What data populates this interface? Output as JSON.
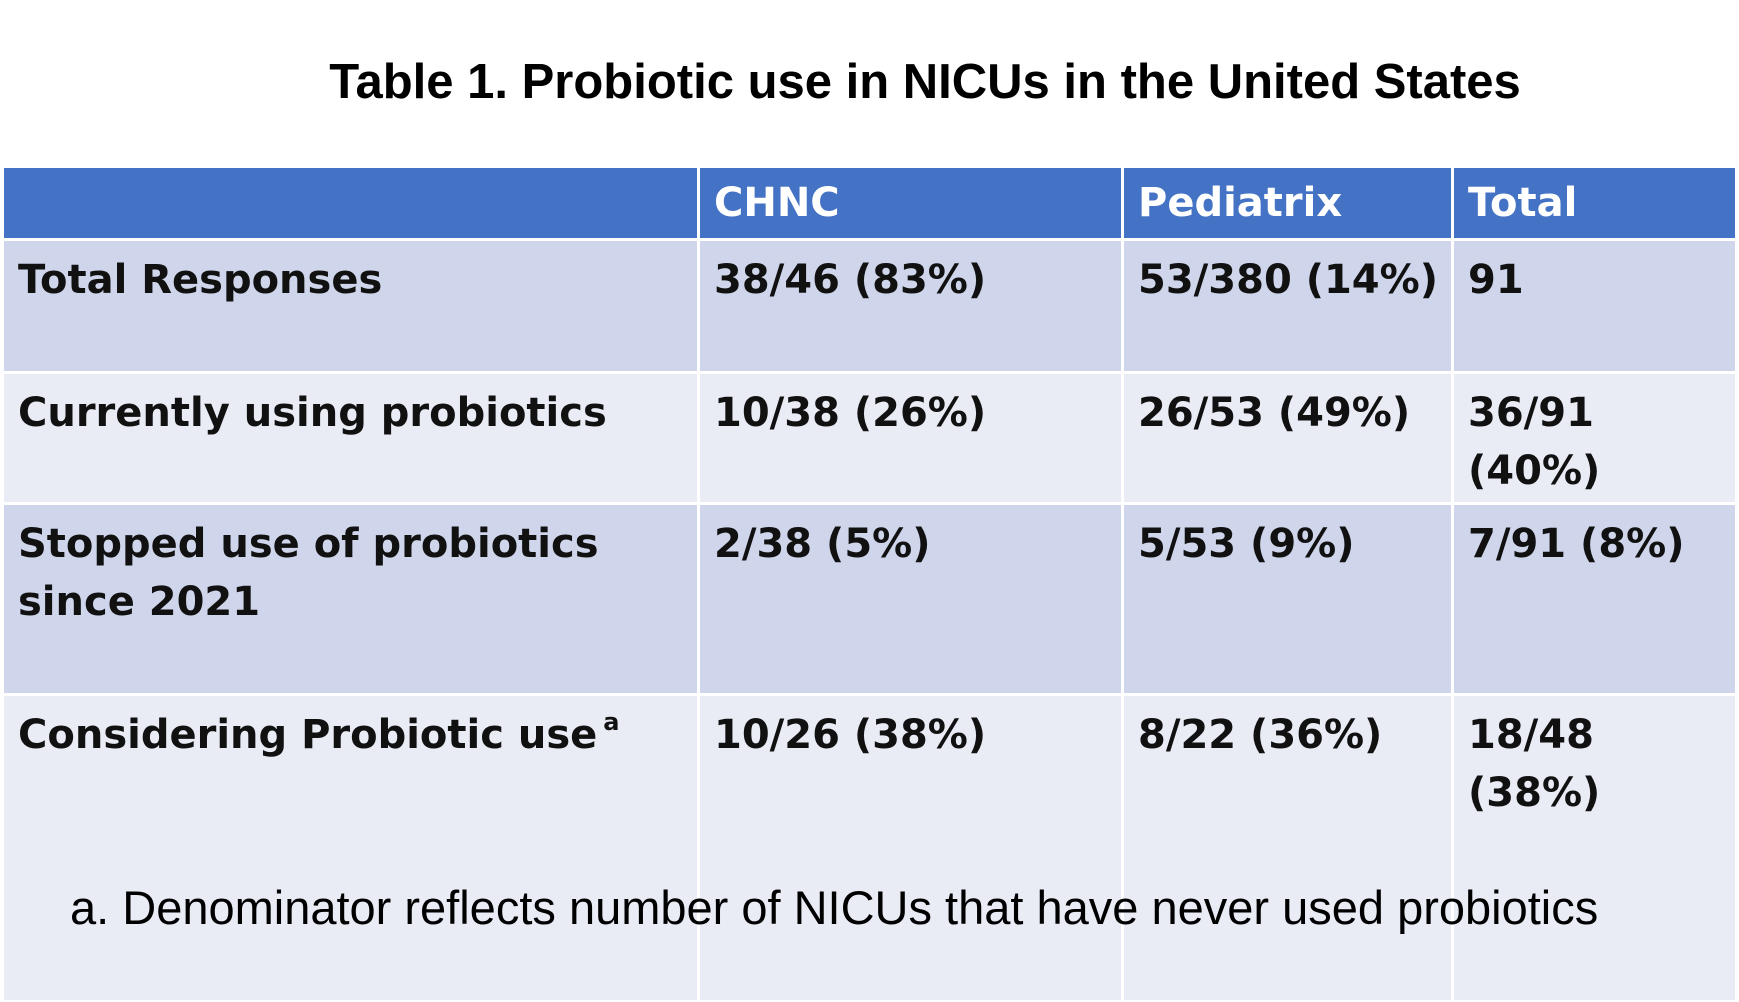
{
  "title": "Table 1.  Probiotic use in NICUs in the United States",
  "table": {
    "headers": [
      "",
      "CHNC",
      "Pediatrix",
      "Total"
    ],
    "rows": [
      {
        "label": "Total Responses",
        "label_sup": "",
        "chnc": "38/46 (83%)",
        "pediatrix": "53/380 (14%)",
        "total": "91"
      },
      {
        "label": "Currently using probiotics",
        "label_sup": "",
        "chnc": "10/38 (26%)",
        "pediatrix": "26/53 (49%)",
        "total": "36/91 (40%)"
      },
      {
        "label": "Stopped use of probiotics since 2021",
        "label_sup": "",
        "chnc": "2/38 (5%)",
        "pediatrix": "5/53 (9%)",
        "total": "7/91 (8%)"
      },
      {
        "label": "Considering Probiotic use",
        "label_sup": "a",
        "chnc": "10/26 (38%)",
        "pediatrix": "8/22 (36%)",
        "total": "18/48 (38%)"
      }
    ]
  },
  "footnote": "a. Denominator reflects number of NICUs that have never used probiotics",
  "colors": {
    "header_bg": "#4472c4",
    "row_dark": "#cfd5ea",
    "row_light": "#e9ebf5"
  }
}
